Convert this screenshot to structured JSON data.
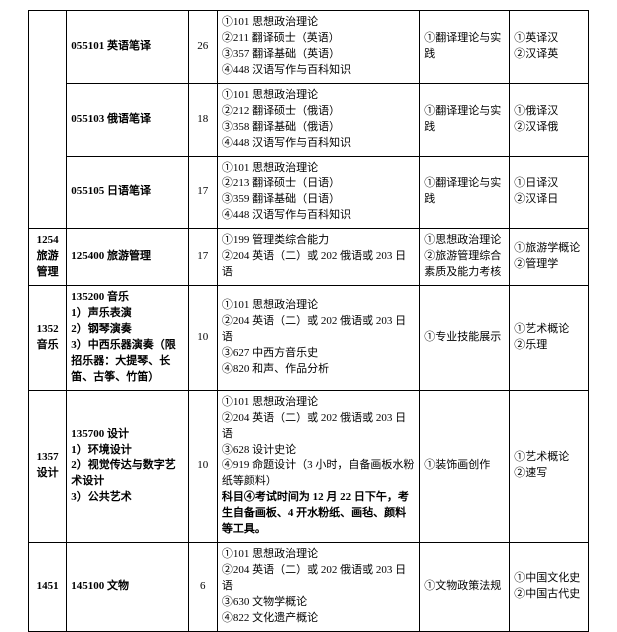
{
  "rows": [
    {
      "c1": null,
      "c2": "055101 英语笔译",
      "c3": "26",
      "c4": "①101 思想政治理论\n②211 翻译硕士（英语）\n③357 翻译基础（英语）\n④448 汉语写作与百科知识",
      "c5": "①翻译理论与实践",
      "c6": "①英译汉\n②汉译英"
    },
    {
      "c1": null,
      "c2": "055103 俄语笔译",
      "c3": "18",
      "c4": "①101 思想政治理论\n②212 翻译硕士（俄语）\n③358 翻译基础（俄语）\n④448 汉语写作与百科知识",
      "c5": "①翻译理论与实践",
      "c6": "①俄译汉\n②汉译俄"
    },
    {
      "c1": null,
      "c2": "055105 日语笔译",
      "c3": "17",
      "c4": "①101 思想政治理论\n②213 翻译硕士（日语）\n③359 翻译基础（日语）\n④448 汉语写作与百科知识",
      "c5": "①翻译理论与实践",
      "c6": "①日译汉\n②汉译日"
    },
    {
      "c1": "1254\n旅游管理",
      "c2": "125400 旅游管理",
      "c3": "17",
      "c4": "①199 管理类综合能力\n②204 英语（二）或 202 俄语或 203 日语",
      "c5": "①思想政治理论\n②旅游管理综合素质及能力考核",
      "c6": "①旅游学概论\n②管理学"
    },
    {
      "c1": "1352\n音乐",
      "c2": "135200 音乐\n1）声乐表演\n2）钢琴演奏\n3）中西乐器演奏（限招乐器：大提琴、长笛、古筝、竹笛）",
      "c3": "10",
      "c4": "①101 思想政治理论\n②204 英语（二）或 202 俄语或 203 日语\n③627 中西方音乐史\n④820 和声、作品分析",
      "c5": "①专业技能展示",
      "c6": "①艺术概论\n②乐理"
    },
    {
      "c1": "1357\n设计",
      "c2": "135700 设计\n1）环境设计\n2）视觉传达与数字艺术设计\n3）公共艺术",
      "c3": "10",
      "c4_pre": "①101 思想政治理论\n②204 英语（二）或 202 俄语或 203 日语\n③628 设计史论\n④919 命题设计（3 小时，自备画板水粉纸等颜料）\n",
      "c4_bold": "科目④考试时间为 12 月 22 日下午，考生自备画板、4 开水粉纸、画毡、颜料等工具。",
      "c5": "①装饰画创作",
      "c6": "①艺术概论\n②速写"
    },
    {
      "c1": "1451",
      "c2": "145100 文物",
      "c3": "6",
      "c4": "①101 思想政治理论\n②204 英语（二）或 202 俄语或 203 日语\n③630 文物学概论\n④822 文化遗产概论",
      "c5": "①文物政策法规",
      "c6": "①中国文化史\n②中国古代史"
    }
  ]
}
